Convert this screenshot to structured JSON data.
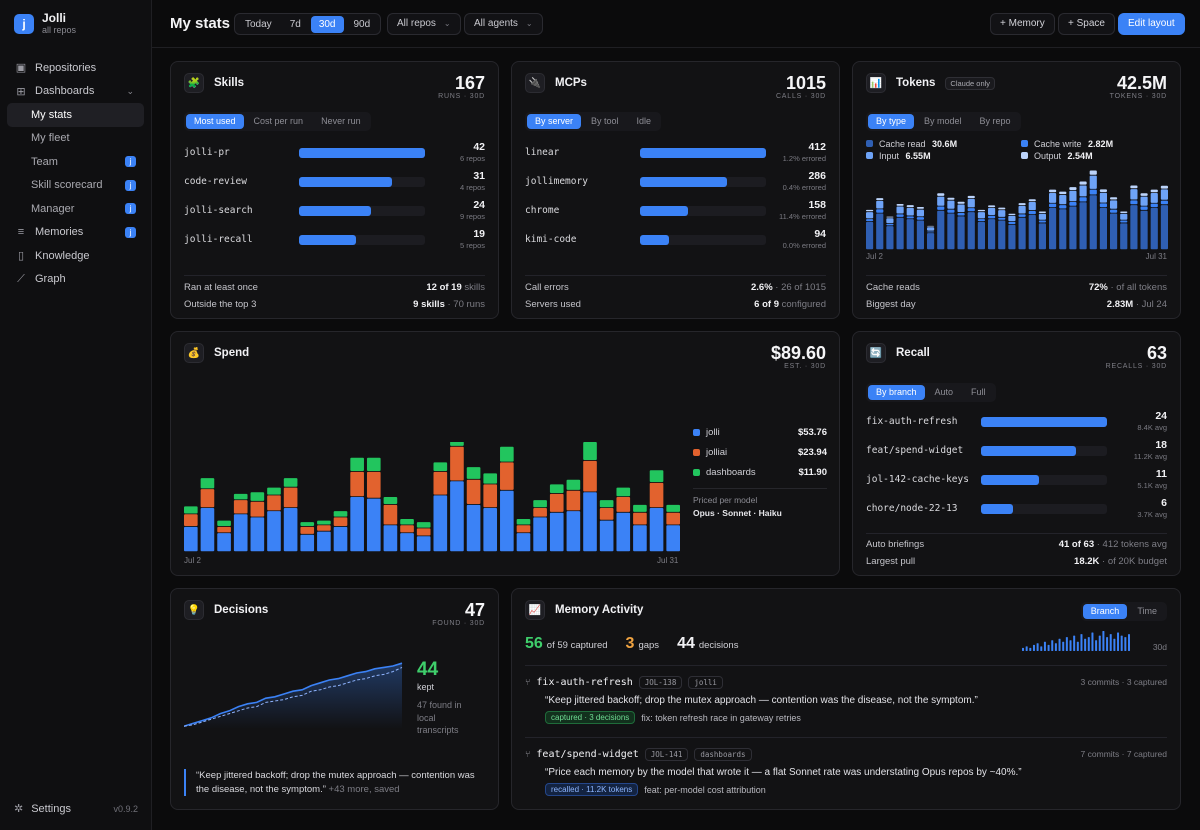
{
  "brand": {
    "logo": "j",
    "name": "Jolli",
    "sub": "all repos"
  },
  "sidebar": {
    "items": [
      {
        "label": "Repositories",
        "icon": "repo-icon"
      },
      {
        "label": "Dashboards",
        "icon": "dashboard-icon"
      },
      {
        "label": "My stats"
      },
      {
        "label": "My fleet"
      },
      {
        "label": "Team",
        "badge": "j"
      },
      {
        "label": "Skill scorecard",
        "badge": "j"
      },
      {
        "label": "Manager",
        "badge": "j"
      },
      {
        "label": "Memories",
        "icon": "memory-icon",
        "badge": "j"
      },
      {
        "label": "Knowledge",
        "icon": "book-icon"
      },
      {
        "label": "Graph",
        "icon": "graph-icon"
      }
    ],
    "settings": "Settings",
    "version": "v0.9.2"
  },
  "header": {
    "title": "My stats",
    "ranges": [
      "Today",
      "7d",
      "30d",
      "90d"
    ],
    "active_range": "30d",
    "repo_filter": "All repos",
    "agent_filter": "All agents",
    "btn_memory": "+ Memory",
    "btn_space": "+ Space",
    "btn_edit": "Edit layout"
  },
  "skills": {
    "title": "Skills",
    "big": "167",
    "big_label": "RUNS · 30D",
    "tabs": [
      "Most used",
      "Cost per run",
      "Never run"
    ],
    "rows": [
      {
        "name": "jolli-pr",
        "value": "42",
        "sub": "6 repos",
        "frac": 1.0
      },
      {
        "name": "code-review",
        "value": "31",
        "sub": "4 repos",
        "frac": 0.74
      },
      {
        "name": "jolli-search",
        "value": "24",
        "sub": "9 repos",
        "frac": 0.57
      },
      {
        "name": "jolli-recall",
        "value": "19",
        "sub": "5 repos",
        "frac": 0.45
      }
    ],
    "foot": [
      {
        "label": "Ran at least once",
        "value": "12 of 19",
        "note": "skills"
      },
      {
        "label": "Outside the top 3",
        "value": "9 skills",
        "note": "· 70 runs"
      }
    ]
  },
  "mcps": {
    "title": "MCPs",
    "big": "1015",
    "big_label": "CALLS · 30D",
    "tabs": [
      "By server",
      "By tool",
      "Idle"
    ],
    "rows": [
      {
        "name": "linear",
        "value": "412",
        "sub": "1.2% errored",
        "frac": 1.0
      },
      {
        "name": "jollimemory",
        "value": "286",
        "sub": "0.4% errored",
        "frac": 0.69
      },
      {
        "name": "chrome",
        "value": "158",
        "sub": "11.4% errored",
        "frac": 0.38
      },
      {
        "name": "kimi-code",
        "value": "94",
        "sub": "0.0% errored",
        "frac": 0.23
      }
    ],
    "foot": [
      {
        "label": "Call errors",
        "value": "2.6%",
        "note": "· 26 of 1015"
      },
      {
        "label": "Servers used",
        "value": "6 of 9",
        "note": "configured"
      }
    ]
  },
  "tokens": {
    "title": "Tokens",
    "badge": "Claude only",
    "big": "42.5M",
    "big_label": "TOKENS · 30D",
    "tabs": [
      "By type",
      "By model",
      "By repo"
    ],
    "legend": [
      {
        "label": "Cache read",
        "value": "30.6M",
        "color": "#2f5fb3"
      },
      {
        "label": "Cache write",
        "value": "2.82M",
        "color": "#3b82f6"
      },
      {
        "label": "Input",
        "value": "6.55M",
        "color": "#6ea3f7"
      },
      {
        "label": "Output",
        "value": "2.54M",
        "color": "#bcd4fb"
      }
    ],
    "x_start": "Jul 2",
    "x_end": "Jul 31",
    "foot": [
      {
        "label": "Cache reads",
        "value": "72%",
        "note": "· of all tokens"
      },
      {
        "label": "Biggest day",
        "value": "2.83M",
        "note": "· Jul 24"
      }
    ]
  },
  "spend": {
    "title": "Spend",
    "big": "$89.60",
    "big_label": "EST. · 30D",
    "legend": [
      {
        "label": "jolli",
        "value": "$53.76",
        "color": "#3b82f6"
      },
      {
        "label": "jolliai",
        "value": "$23.94",
        "color": "#e2622e"
      },
      {
        "label": "dashboards",
        "value": "$11.90",
        "color": "#22c55e"
      }
    ],
    "note1": "Priced per model",
    "note2": "Opus · Sonnet · Haiku",
    "x_start": "Jul 2",
    "x_end": "Jul 31"
  },
  "recall": {
    "title": "Recall",
    "big": "63",
    "big_label": "RECALLS · 30D",
    "tabs": [
      "By branch",
      "Auto",
      "Full"
    ],
    "rows": [
      {
        "name": "fix-auth-refresh",
        "value": "24",
        "sub": "8.4K avg",
        "frac": 1.0
      },
      {
        "name": "feat/spend-widget",
        "value": "18",
        "sub": "11.2K avg",
        "frac": 0.75
      },
      {
        "name": "jol-142-cache-keys",
        "value": "11",
        "sub": "5.1K avg",
        "frac": 0.46
      },
      {
        "name": "chore/node-22-13",
        "value": "6",
        "sub": "3.7K avg",
        "frac": 0.25
      }
    ],
    "foot": [
      {
        "label": "Auto briefings",
        "value": "41 of 63",
        "note": "· 412 tokens avg"
      },
      {
        "label": "Largest pull",
        "value": "18.2K",
        "note": "· of 20K budget"
      }
    ]
  },
  "decisions": {
    "title": "Decisions",
    "big": "47",
    "big_label": "FOUND · 30D",
    "kept_value": "44",
    "kept_label": "kept",
    "found_text": "47 found in local transcripts",
    "quote": "“Keep jittered backoff; drop the mutex approach — contention was the disease, not the symptom.”",
    "quote_more": "+43 more, saved"
  },
  "memory": {
    "title": "Memory Activity",
    "tabs": [
      "Branch",
      "Time"
    ],
    "captured_value": "56",
    "captured_label": "of 59 captured",
    "gaps_value": "3",
    "gaps_label": "gaps",
    "decisions_value": "44",
    "decisions_label": "decisions",
    "spark_label": "30d",
    "entries": [
      {
        "branch": "fix-auth-refresh",
        "ticket": "JOL-138",
        "repo": "jolli",
        "meta": "3 commits · 3 captured",
        "quote": "“Keep jittered backoff; drop the mutex approach — contention was the disease, not the symptom.”",
        "pill": "captured · 3 decisions",
        "commit": "fix: token refresh race in gateway retries"
      },
      {
        "branch": "feat/spend-widget",
        "ticket": "JOL-141",
        "repo": "dashboards",
        "meta": "7 commits · 7 captured",
        "quote": "“Price each memory by the model that wrote it — a flat Sonnet rate was understating Opus repos by ~40%.”",
        "pill": "recalled · 11.2K tokens",
        "commit": "feat: per-model cost attribution"
      }
    ]
  },
  "chart_data": [
    {
      "type": "bar",
      "title": "Tokens",
      "stacked": true,
      "x": [
        "Jul 2",
        "Jul 3",
        "Jul 4",
        "Jul 5",
        "Jul 6",
        "Jul 7",
        "Jul 8",
        "Jul 9",
        "Jul 10",
        "Jul 11",
        "Jul 12",
        "Jul 13",
        "Jul 14",
        "Jul 15",
        "Jul 16",
        "Jul 17",
        "Jul 18",
        "Jul 19",
        "Jul 20",
        "Jul 21",
        "Jul 22",
        "Jul 23",
        "Jul 24",
        "Jul 25",
        "Jul 26",
        "Jul 27",
        "Jul 28",
        "Jul 29",
        "Jul 30",
        "Jul 31"
      ],
      "series": [
        {
          "name": "Cache read",
          "values": [
            1.0,
            1.3,
            0.85,
            1.15,
            1.1,
            1.05,
            0.6,
            1.4,
            1.3,
            1.2,
            1.35,
            1.0,
            1.1,
            1.05,
            0.9,
            1.15,
            1.25,
            0.95,
            1.5,
            1.45,
            1.55,
            1.7,
            1.95,
            1.5,
            1.3,
            0.95,
            1.6,
            1.4,
            1.5,
            1.6
          ]
        },
        {
          "name": "Cache write",
          "values": [
            0.1,
            0.15,
            0.08,
            0.12,
            0.1,
            0.12,
            0.06,
            0.15,
            0.14,
            0.12,
            0.14,
            0.1,
            0.12,
            0.1,
            0.1,
            0.12,
            0.14,
            0.1,
            0.15,
            0.15,
            0.16,
            0.18,
            0.2,
            0.16,
            0.14,
            0.1,
            0.17,
            0.15,
            0.15,
            0.16
          ]
        },
        {
          "name": "Input",
          "values": [
            0.25,
            0.3,
            0.2,
            0.28,
            0.3,
            0.27,
            0.15,
            0.35,
            0.32,
            0.3,
            0.33,
            0.25,
            0.28,
            0.27,
            0.22,
            0.3,
            0.32,
            0.24,
            0.38,
            0.36,
            0.4,
            0.42,
            0.5,
            0.38,
            0.33,
            0.24,
            0.4,
            0.35,
            0.38,
            0.4
          ]
        },
        {
          "name": "Output",
          "values": [
            0.08,
            0.1,
            0.06,
            0.09,
            0.1,
            0.09,
            0.05,
            0.12,
            0.1,
            0.1,
            0.11,
            0.08,
            0.09,
            0.09,
            0.07,
            0.1,
            0.1,
            0.08,
            0.12,
            0.12,
            0.13,
            0.14,
            0.18,
            0.12,
            0.11,
            0.08,
            0.13,
            0.12,
            0.12,
            0.13
          ]
        }
      ]
    },
    {
      "type": "bar",
      "title": "Spend",
      "stacked": true,
      "x": [
        "Jul 2",
        "Jul 3",
        "Jul 4",
        "Jul 5",
        "Jul 6",
        "Jul 7",
        "Jul 8",
        "Jul 9",
        "Jul 10",
        "Jul 11",
        "Jul 12",
        "Jul 13",
        "Jul 14",
        "Jul 15",
        "Jul 16",
        "Jul 17",
        "Jul 18",
        "Jul 19",
        "Jul 20",
        "Jul 21",
        "Jul 22",
        "Jul 23",
        "Jul 24",
        "Jul 25",
        "Jul 26",
        "Jul 27",
        "Jul 28",
        "Jul 29",
        "Jul 30",
        "Jul 31"
      ],
      "series": [
        {
          "name": "jolli",
          "values": [
            1.6,
            2.8,
            1.2,
            2.4,
            2.2,
            2.6,
            2.8,
            1.1,
            1.3,
            1.6,
            3.5,
            3.4,
            1.7,
            1.2,
            1.0,
            3.6,
            4.5,
            3.0,
            2.8,
            3.9,
            1.2,
            2.2,
            2.5,
            2.6,
            3.8,
            2.0,
            2.5,
            1.7,
            2.8,
            1.7
          ]
        },
        {
          "name": "jolliai",
          "values": [
            0.8,
            1.2,
            0.4,
            0.9,
            1.0,
            1.0,
            1.3,
            0.5,
            0.4,
            0.6,
            1.6,
            1.7,
            1.3,
            0.5,
            0.5,
            1.5,
            2.2,
            1.6,
            1.5,
            1.8,
            0.5,
            0.6,
            1.2,
            1.3,
            2.0,
            0.8,
            1.0,
            0.8,
            1.6,
            0.8
          ]
        },
        {
          "name": "dashboards",
          "values": [
            0.5,
            0.7,
            0.4,
            0.4,
            0.6,
            0.5,
            0.6,
            0.3,
            0.3,
            0.4,
            0.9,
            0.9,
            0.5,
            0.4,
            0.4,
            0.6,
            1.1,
            0.8,
            0.7,
            1.0,
            0.4,
            0.5,
            0.6,
            0.7,
            1.2,
            0.5,
            0.6,
            0.5,
            0.8,
            0.5
          ]
        }
      ]
    },
    {
      "type": "line",
      "title": "Decisions",
      "series": [
        {
          "name": "found",
          "values": [
            2,
            4,
            6,
            8,
            11,
            13,
            16,
            18,
            19,
            22,
            23,
            25,
            27,
            28,
            31,
            33,
            35,
            36,
            38,
            40,
            41,
            43,
            44,
            45,
            47
          ]
        },
        {
          "name": "kept",
          "values": [
            2,
            3,
            5,
            7,
            9,
            11,
            13,
            15,
            16,
            19,
            20,
            21,
            23,
            24,
            27,
            28,
            30,
            31,
            33,
            35,
            36,
            38,
            39,
            41,
            44
          ]
        }
      ]
    },
    {
      "type": "bar",
      "title": "Memory activity",
      "values": [
        2,
        3,
        2,
        4,
        5,
        3,
        6,
        4,
        7,
        5,
        8,
        6,
        9,
        7,
        10,
        6,
        11,
        8,
        9,
        12,
        7,
        10,
        13,
        9,
        11,
        8,
        12,
        10,
        9,
        11
      ]
    }
  ]
}
